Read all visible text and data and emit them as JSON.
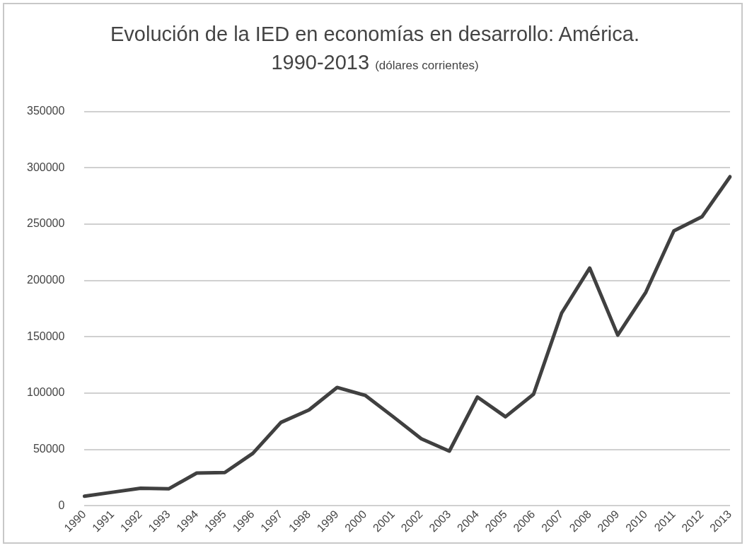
{
  "chart_data": {
    "type": "line",
    "title": "Evolución de la IED en economías en desarrollo: América. 1990-2013",
    "subtitle": "(dólares corrientes)",
    "categories": [
      "1990",
      "1991",
      "1992",
      "1993",
      "1994",
      "1995",
      "1996",
      "1997",
      "1998",
      "1999",
      "2000",
      "2001",
      "2002",
      "2003",
      "2004",
      "2005",
      "2006",
      "2007",
      "2008",
      "2009",
      "2010",
      "2011",
      "2012",
      "2013"
    ],
    "values": [
      8500,
      12000,
      15500,
      15000,
      29000,
      29500,
      46500,
      74000,
      85000,
      105000,
      98000,
      79000,
      59500,
      48500,
      96500,
      79000,
      99000,
      171000,
      211000,
      151500,
      189500,
      244000,
      256500,
      292000
    ],
    "color": "#404040",
    "ylim": [
      0,
      350000
    ],
    "yticks": [
      0,
      50000,
      100000,
      150000,
      200000,
      250000,
      300000,
      350000
    ],
    "grid": "y",
    "legend": false,
    "marker": "none",
    "line_style": "solid"
  }
}
